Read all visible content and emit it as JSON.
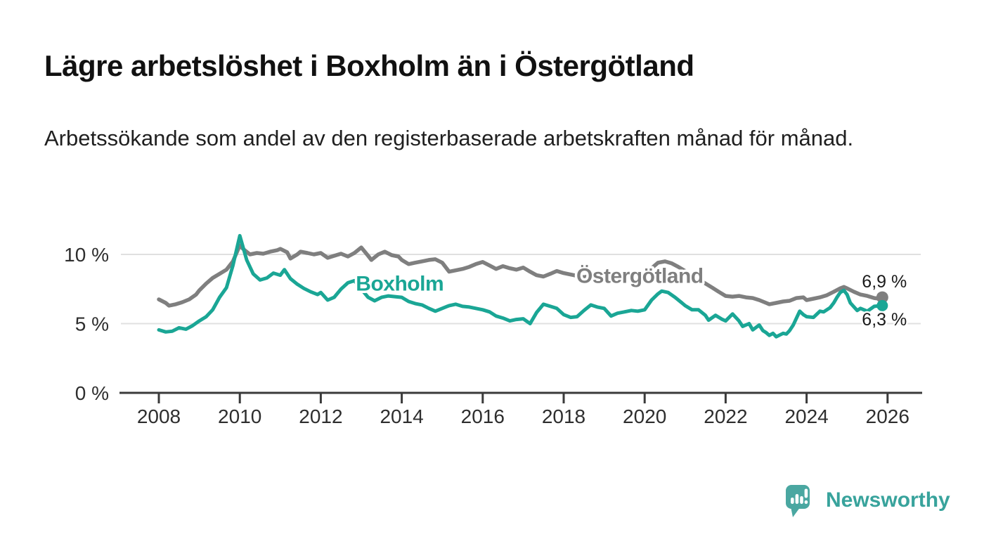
{
  "header": {
    "title": "Lägre arbetslöshet i Boxholm än i Östergötland",
    "subtitle": "Arbetssökande som andel av den registerbaserade arbetskraften månad för månad."
  },
  "footer": {
    "brand": "Newsworthy"
  },
  "colors": {
    "background": "#ffffff",
    "title_text": "#111111",
    "body_text": "#1f1f1f",
    "axis_line": "#3a3a3a",
    "axis_text": "#2e2e2e",
    "gridline": "#e0e0e0",
    "boxholm_teal": "#1aa695",
    "ostergotland_gray": "#7f7f7f",
    "end_label_text": "#1a1a1a",
    "logo_teal": "#4aa7a1",
    "logo_text_teal": "#38a39c"
  },
  "chart_data": {
    "type": "line",
    "title": "Lägre arbetslöshet i Boxholm än i Östergötland",
    "subtitle": "Arbetssökande som andel av den registerbaserade arbetskraften månad för månad.",
    "xlabel": "",
    "ylabel": "",
    "unit": "%",
    "grid": "horizontal",
    "legend_position": "inline-labels",
    "xlim": [
      2007.55,
      2026.9
    ],
    "ylim": [
      0,
      12
    ],
    "x_ticks": [
      {
        "label": "2008",
        "value": 2008
      },
      {
        "label": "2010",
        "value": 2010
      },
      {
        "label": "2012",
        "value": 2012
      },
      {
        "label": "2014",
        "value": 2014
      },
      {
        "label": "2016",
        "value": 2016
      },
      {
        "label": "2018",
        "value": 2018
      },
      {
        "label": "2020",
        "value": 2020
      },
      {
        "label": "2022",
        "value": 2022
      },
      {
        "label": "2024",
        "value": 2024
      },
      {
        "label": "2026",
        "value": 2026
      }
    ],
    "y_ticks": [
      {
        "label": "0 %",
        "value": 0
      },
      {
        "label": "5 %",
        "value": 5
      },
      {
        "label": "10 %",
        "value": 10
      }
    ],
    "series": [
      {
        "name": "Östergötland",
        "color": "#7f7f7f",
        "line_width": 5.5,
        "end_dot_radius": 8.5,
        "end_label": "6,9 %",
        "end_label_offset": [
          -29,
          -14
        ],
        "label_anchor": [
          2019.88,
          8.45
        ],
        "points": [
          [
            2008.0,
            6.75
          ],
          [
            2008.17,
            6.5
          ],
          [
            2008.25,
            6.3
          ],
          [
            2008.42,
            6.4
          ],
          [
            2008.58,
            6.55
          ],
          [
            2008.75,
            6.75
          ],
          [
            2008.92,
            7.1
          ],
          [
            2009.0,
            7.4
          ],
          [
            2009.17,
            7.9
          ],
          [
            2009.33,
            8.3
          ],
          [
            2009.5,
            8.6
          ],
          [
            2009.67,
            8.9
          ],
          [
            2009.83,
            9.5
          ],
          [
            2010.0,
            10.65
          ],
          [
            2010.08,
            10.4
          ],
          [
            2010.25,
            10.0
          ],
          [
            2010.42,
            10.1
          ],
          [
            2010.58,
            10.05
          ],
          [
            2010.75,
            10.2
          ],
          [
            2010.92,
            10.3
          ],
          [
            2011.0,
            10.4
          ],
          [
            2011.17,
            10.15
          ],
          [
            2011.25,
            9.7
          ],
          [
            2011.42,
            10.0
          ],
          [
            2011.5,
            10.2
          ],
          [
            2011.67,
            10.1
          ],
          [
            2011.83,
            10.0
          ],
          [
            2012.0,
            10.1
          ],
          [
            2012.17,
            9.75
          ],
          [
            2012.33,
            9.9
          ],
          [
            2012.5,
            10.05
          ],
          [
            2012.67,
            9.85
          ],
          [
            2012.83,
            10.1
          ],
          [
            2013.0,
            10.5
          ],
          [
            2013.17,
            9.9
          ],
          [
            2013.25,
            9.6
          ],
          [
            2013.42,
            10.0
          ],
          [
            2013.58,
            10.2
          ],
          [
            2013.75,
            9.95
          ],
          [
            2013.92,
            9.85
          ],
          [
            2014.0,
            9.6
          ],
          [
            2014.17,
            9.3
          ],
          [
            2014.33,
            9.4
          ],
          [
            2014.5,
            9.5
          ],
          [
            2014.67,
            9.6
          ],
          [
            2014.83,
            9.65
          ],
          [
            2015.0,
            9.4
          ],
          [
            2015.17,
            8.75
          ],
          [
            2015.33,
            8.85
          ],
          [
            2015.5,
            8.95
          ],
          [
            2015.67,
            9.1
          ],
          [
            2015.83,
            9.3
          ],
          [
            2016.0,
            9.45
          ],
          [
            2016.17,
            9.2
          ],
          [
            2016.33,
            8.95
          ],
          [
            2016.5,
            9.15
          ],
          [
            2016.67,
            9.0
          ],
          [
            2016.83,
            8.9
          ],
          [
            2017.0,
            9.05
          ],
          [
            2017.17,
            8.75
          ],
          [
            2017.33,
            8.5
          ],
          [
            2017.5,
            8.4
          ],
          [
            2017.67,
            8.6
          ],
          [
            2017.83,
            8.8
          ],
          [
            2018.0,
            8.65
          ],
          [
            2018.25,
            8.5
          ],
          [
            2018.5,
            8.35
          ],
          [
            2018.75,
            8.5
          ],
          [
            2019.0,
            8.4
          ],
          [
            2019.25,
            8.3
          ],
          [
            2019.5,
            8.4
          ],
          [
            2019.75,
            8.3
          ],
          [
            2020.0,
            8.5
          ],
          [
            2020.17,
            9.0
          ],
          [
            2020.33,
            9.4
          ],
          [
            2020.5,
            9.5
          ],
          [
            2020.67,
            9.35
          ],
          [
            2020.83,
            9.1
          ],
          [
            2021.0,
            8.8
          ],
          [
            2021.17,
            8.5
          ],
          [
            2021.33,
            8.2
          ],
          [
            2021.5,
            7.9
          ],
          [
            2021.67,
            7.6
          ],
          [
            2021.83,
            7.3
          ],
          [
            2022.0,
            7.0
          ],
          [
            2022.17,
            6.95
          ],
          [
            2022.33,
            7.0
          ],
          [
            2022.5,
            6.9
          ],
          [
            2022.67,
            6.85
          ],
          [
            2022.83,
            6.7
          ],
          [
            2023.0,
            6.5
          ],
          [
            2023.08,
            6.4
          ],
          [
            2023.25,
            6.5
          ],
          [
            2023.42,
            6.6
          ],
          [
            2023.58,
            6.65
          ],
          [
            2023.75,
            6.85
          ],
          [
            2023.92,
            6.9
          ],
          [
            2024.0,
            6.7
          ],
          [
            2024.17,
            6.8
          ],
          [
            2024.33,
            6.9
          ],
          [
            2024.5,
            7.05
          ],
          [
            2024.67,
            7.3
          ],
          [
            2024.83,
            7.55
          ],
          [
            2024.92,
            7.65
          ],
          [
            2025.0,
            7.55
          ],
          [
            2025.17,
            7.3
          ],
          [
            2025.33,
            7.1
          ],
          [
            2025.5,
            7.0
          ],
          [
            2025.67,
            6.85
          ],
          [
            2025.79,
            6.8
          ],
          [
            2025.87,
            6.9
          ]
        ]
      },
      {
        "name": "Boxholm",
        "color": "#1aa695",
        "line_width": 5,
        "end_dot_radius": 8,
        "end_label": "6,3 %",
        "end_label_offset": [
          -29,
          28
        ],
        "label_anchor": [
          2013.95,
          7.9
        ],
        "points": [
          [
            2008.0,
            4.55
          ],
          [
            2008.17,
            4.4
          ],
          [
            2008.33,
            4.45
          ],
          [
            2008.5,
            4.7
          ],
          [
            2008.67,
            4.6
          ],
          [
            2008.83,
            4.85
          ],
          [
            2009.0,
            5.2
          ],
          [
            2009.17,
            5.5
          ],
          [
            2009.33,
            6.0
          ],
          [
            2009.5,
            6.9
          ],
          [
            2009.67,
            7.6
          ],
          [
            2009.83,
            9.2
          ],
          [
            2010.0,
            11.35
          ],
          [
            2010.17,
            9.6
          ],
          [
            2010.33,
            8.6
          ],
          [
            2010.5,
            8.15
          ],
          [
            2010.67,
            8.3
          ],
          [
            2010.83,
            8.65
          ],
          [
            2011.0,
            8.5
          ],
          [
            2011.1,
            8.9
          ],
          [
            2011.25,
            8.25
          ],
          [
            2011.42,
            7.85
          ],
          [
            2011.58,
            7.55
          ],
          [
            2011.75,
            7.3
          ],
          [
            2011.92,
            7.1
          ],
          [
            2012.0,
            7.25
          ],
          [
            2012.17,
            6.7
          ],
          [
            2012.33,
            6.9
          ],
          [
            2012.5,
            7.5
          ],
          [
            2012.67,
            7.95
          ],
          [
            2012.83,
            8.1
          ],
          [
            2013.0,
            7.5
          ],
          [
            2013.17,
            6.9
          ],
          [
            2013.33,
            6.65
          ],
          [
            2013.5,
            6.9
          ],
          [
            2013.67,
            7.0
          ],
          [
            2013.83,
            6.95
          ],
          [
            2014.0,
            6.9
          ],
          [
            2014.17,
            6.6
          ],
          [
            2014.33,
            6.45
          ],
          [
            2014.5,
            6.35
          ],
          [
            2014.67,
            6.1
          ],
          [
            2014.83,
            5.9
          ],
          [
            2015.0,
            6.1
          ],
          [
            2015.17,
            6.3
          ],
          [
            2015.33,
            6.4
          ],
          [
            2015.5,
            6.25
          ],
          [
            2015.67,
            6.2
          ],
          [
            2015.83,
            6.1
          ],
          [
            2016.0,
            6.0
          ],
          [
            2016.17,
            5.85
          ],
          [
            2016.33,
            5.55
          ],
          [
            2016.5,
            5.4
          ],
          [
            2016.67,
            5.2
          ],
          [
            2016.83,
            5.3
          ],
          [
            2017.0,
            5.35
          ],
          [
            2017.17,
            5.0
          ],
          [
            2017.33,
            5.8
          ],
          [
            2017.5,
            6.4
          ],
          [
            2017.67,
            6.25
          ],
          [
            2017.83,
            6.1
          ],
          [
            2018.0,
            5.65
          ],
          [
            2018.17,
            5.45
          ],
          [
            2018.33,
            5.5
          ],
          [
            2018.5,
            5.95
          ],
          [
            2018.67,
            6.35
          ],
          [
            2018.83,
            6.2
          ],
          [
            2019.0,
            6.1
          ],
          [
            2019.17,
            5.55
          ],
          [
            2019.33,
            5.75
          ],
          [
            2019.5,
            5.85
          ],
          [
            2019.67,
            5.95
          ],
          [
            2019.83,
            5.9
          ],
          [
            2020.0,
            6.0
          ],
          [
            2020.17,
            6.7
          ],
          [
            2020.33,
            7.15
          ],
          [
            2020.42,
            7.35
          ],
          [
            2020.58,
            7.25
          ],
          [
            2020.75,
            6.9
          ],
          [
            2020.92,
            6.5
          ],
          [
            2021.0,
            6.3
          ],
          [
            2021.17,
            6.0
          ],
          [
            2021.33,
            6.0
          ],
          [
            2021.5,
            5.6
          ],
          [
            2021.58,
            5.25
          ],
          [
            2021.75,
            5.6
          ],
          [
            2021.92,
            5.3
          ],
          [
            2022.0,
            5.2
          ],
          [
            2022.17,
            5.7
          ],
          [
            2022.33,
            5.2
          ],
          [
            2022.42,
            4.8
          ],
          [
            2022.58,
            5.0
          ],
          [
            2022.67,
            4.55
          ],
          [
            2022.83,
            4.9
          ],
          [
            2022.92,
            4.5
          ],
          [
            2023.0,
            4.35
          ],
          [
            2023.08,
            4.15
          ],
          [
            2023.17,
            4.3
          ],
          [
            2023.25,
            4.05
          ],
          [
            2023.42,
            4.3
          ],
          [
            2023.5,
            4.25
          ],
          [
            2023.58,
            4.5
          ],
          [
            2023.67,
            4.9
          ],
          [
            2023.83,
            5.9
          ],
          [
            2023.92,
            5.65
          ],
          [
            2024.0,
            5.5
          ],
          [
            2024.17,
            5.45
          ],
          [
            2024.33,
            5.9
          ],
          [
            2024.42,
            5.85
          ],
          [
            2024.5,
            6.0
          ],
          [
            2024.58,
            6.15
          ],
          [
            2024.67,
            6.5
          ],
          [
            2024.75,
            6.9
          ],
          [
            2024.83,
            7.25
          ],
          [
            2024.92,
            7.4
          ],
          [
            2025.0,
            7.1
          ],
          [
            2025.08,
            6.5
          ],
          [
            2025.25,
            5.95
          ],
          [
            2025.33,
            6.1
          ],
          [
            2025.5,
            5.9
          ],
          [
            2025.67,
            6.25
          ],
          [
            2025.87,
            6.3
          ]
        ]
      }
    ]
  }
}
